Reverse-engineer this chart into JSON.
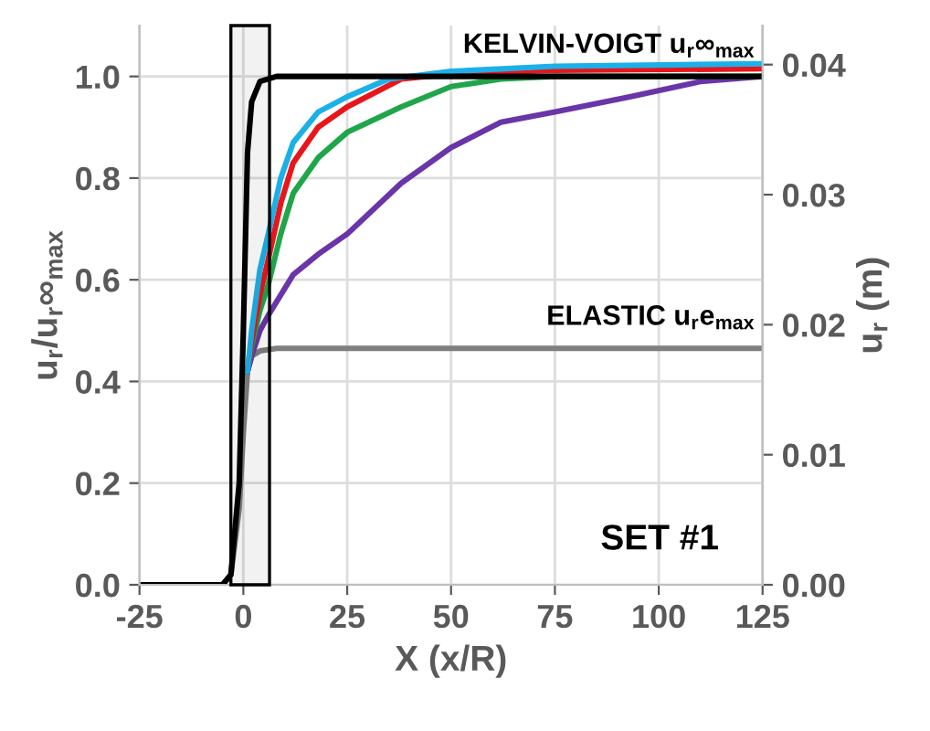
{
  "chart_data": {
    "type": "line",
    "xlabel": "X (x/R)",
    "ylabel": "u$_{r}$/u$_{r}$∞$_{max}$",
    "y2label": "u$_{r}$ (m)",
    "xlim": [
      -25,
      125
    ],
    "xticks": [
      -25,
      0,
      25,
      50,
      75,
      100,
      125
    ],
    "ylim": [
      0,
      1.1
    ],
    "yticks": [
      {
        "value": 0,
        "label": "0.0"
      },
      0.2,
      0.4,
      0.6,
      0.8,
      {
        "value": 1,
        "label": "1.0"
      }
    ],
    "y2lim": [
      0,
      0.043
    ],
    "y2ticks": [
      {
        "value": 0,
        "label": "0.00"
      },
      {
        "value": 0.01,
        "label": "0.01"
      },
      {
        "value": 0.02,
        "label": "0.02"
      },
      {
        "value": 0.03,
        "label": "0.03"
      },
      {
        "value": 0.04,
        "label": "0.04"
      }
    ],
    "grid": true,
    "marker": "none",
    "line_style": "solid",
    "series": [
      {
        "color": "#7f7f7f",
        "x": [
          -25,
          -5,
          -3,
          -1,
          0,
          1,
          2,
          4,
          8,
          125
        ],
        "values": [
          0,
          0,
          0.02,
          0.15,
          0.3,
          0.42,
          0.45,
          0.46,
          0.465,
          0.465
        ]
      },
      {
        "color": "#6a35a8",
        "x": [
          1,
          2,
          4,
          6,
          9,
          12,
          18,
          25,
          38,
          50,
          62,
          75,
          93,
          110,
          125
        ],
        "values": [
          0.42,
          0.45,
          0.5,
          0.53,
          0.57,
          0.61,
          0.65,
          0.69,
          0.79,
          0.86,
          0.91,
          0.93,
          0.96,
          0.99,
          1.0
        ]
      },
      {
        "color": "#1fa64a",
        "x": [
          1,
          2,
          4,
          6,
          9,
          12,
          18,
          25,
          38,
          50,
          62,
          75,
          125
        ],
        "values": [
          0.42,
          0.47,
          0.54,
          0.59,
          0.69,
          0.77,
          0.84,
          0.89,
          0.94,
          0.98,
          0.995,
          1.0,
          1.0
        ]
      },
      {
        "color": "#e8161b",
        "x": [
          1,
          2,
          4,
          6,
          9,
          12,
          18,
          25,
          38,
          50,
          75,
          125
        ],
        "values": [
          0.42,
          0.48,
          0.57,
          0.64,
          0.75,
          0.83,
          0.9,
          0.94,
          0.995,
          1.005,
          1.012,
          1.015
        ]
      },
      {
        "color": "#1cb0e8",
        "x": [
          1,
          2,
          4,
          6,
          9,
          12,
          18,
          25,
          35,
          50,
          75,
          125
        ],
        "values": [
          0.42,
          0.5,
          0.62,
          0.69,
          0.8,
          0.87,
          0.93,
          0.96,
          0.995,
          1.01,
          1.02,
          1.025
        ]
      },
      {
        "color": "#000000",
        "x": [
          -25,
          -5,
          -3,
          -1,
          0,
          1,
          2,
          4,
          8,
          125
        ],
        "values": [
          0,
          0,
          0.02,
          0.2,
          0.5,
          0.85,
          0.95,
          0.99,
          1.0,
          1.0
        ]
      }
    ],
    "bands": [
      {
        "axis": "x",
        "from": -3,
        "to": 6.3,
        "color": "#000000"
      }
    ],
    "annotations": [
      {
        "text": "KELVIN-VOIGT u$_{r}$∞$_{max}$",
        "x": 125,
        "y": 1.0
      },
      {
        "text": "ELASTIC u$_{r}$e$_{max}$",
        "x": 125,
        "y": 0.465
      },
      "SET #1"
    ]
  }
}
